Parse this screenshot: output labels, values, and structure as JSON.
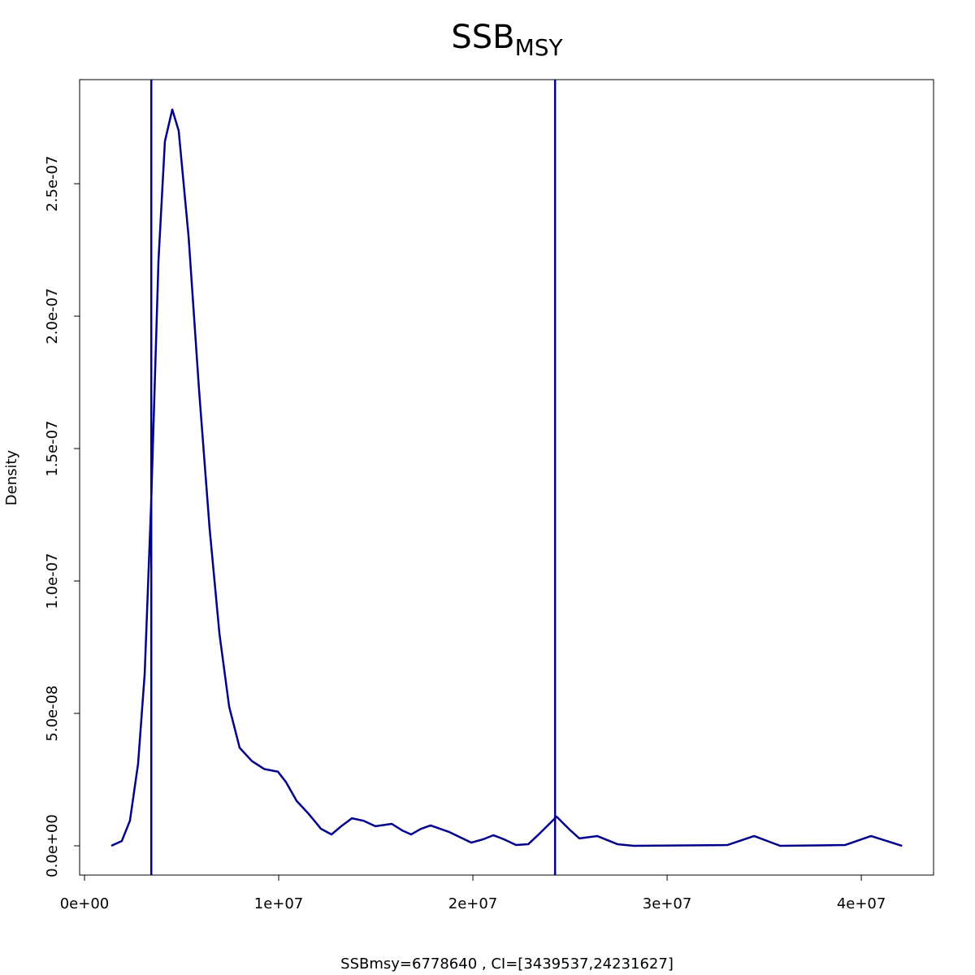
{
  "chart_data": {
    "type": "line",
    "title": "SSB",
    "title_sub": "MSY",
    "x_label": "SSBmsy=6778640 , CI=[3439537,24231627]",
    "y_label": "Density",
    "color": "#00008b",
    "vlines": [
      3439537,
      24231627
    ],
    "x": [
      1380000,
      1920000,
      2340000,
      2760000,
      3100000,
      3430000,
      3810000,
      4140000,
      4520000,
      4850000,
      5360000,
      5900000,
      6440000,
      6950000,
      7450000,
      7990000,
      8620000,
      9250000,
      9960000,
      10380000,
      10920000,
      11550000,
      12180000,
      12720000,
      13220000,
      13770000,
      14350000,
      14980000,
      15820000,
      16360000,
      16820000,
      17320000,
      17820000,
      18790000,
      19920000,
      20540000,
      21050000,
      21590000,
      22220000,
      22850000,
      23470000,
      24310000,
      24940000,
      25480000,
      26400000,
      27450000,
      28280000,
      33100000,
      34480000,
      35820000,
      39160000,
      40500000,
      42100000
    ],
    "series": [
      {
        "name": "density",
        "color": "#00008b",
        "values": [
          0,
          1.8e-09,
          9.5e-09,
          3.1e-08,
          6.5e-08,
          1.29e-07,
          2.21e-07,
          2.66e-07,
          2.78e-07,
          2.7e-07,
          2.3e-07,
          1.72e-07,
          1.2e-07,
          8e-08,
          5.25e-08,
          3.7e-08,
          3.2e-08,
          2.9e-08,
          2.8e-08,
          2.4e-08,
          1.7e-08,
          1.2e-08,
          6.4e-09,
          4.3e-09,
          7.4e-09,
          1.04e-08,
          9.5e-09,
          7.4e-09,
          8.3e-09,
          5.8e-09,
          4.3e-09,
          6.4e-09,
          7.7e-09,
          5.2e-09,
          1.2e-09,
          2.5e-09,
          4e-09,
          2.5e-09,
          3e-10,
          6e-10,
          4.9e-09,
          1.1e-08,
          6.4e-09,
          2.8e-09,
          3.7e-09,
          6e-10,
          0,
          3e-10,
          3.7e-09,
          0,
          3e-10,
          3.7e-09,
          0
        ]
      }
    ],
    "xlim": [
      -251000,
      43720000
    ],
    "ylim": [
      -1.104e-08,
      2.893e-07
    ],
    "xticks": [
      {
        "value": 0,
        "label": "0e+00"
      },
      {
        "value": 10000000,
        "label": "1e+07"
      },
      {
        "value": 20000000,
        "label": "2e+07"
      },
      {
        "value": 30000000,
        "label": "3e+07"
      },
      {
        "value": 40000000,
        "label": "4e+07"
      }
    ],
    "yticks": [
      {
        "value": 0,
        "label": "0.0e+00"
      },
      {
        "value": 5e-08,
        "label": "5.0e-08"
      },
      {
        "value": 1e-07,
        "label": "1.0e-07"
      },
      {
        "value": 1.5e-07,
        "label": "1.5e-07"
      },
      {
        "value": 2e-07,
        "label": "2.0e-07"
      },
      {
        "value": 2.5e-07,
        "label": "2.5e-07"
      }
    ]
  }
}
